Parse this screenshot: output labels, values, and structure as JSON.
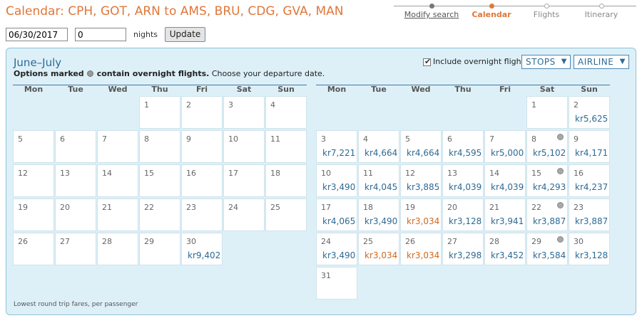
{
  "page": {
    "title": "Calendar: CPH, GOT, ARN to AMS, BRU, CDG, GVA, MAN"
  },
  "steps": [
    {
      "label": "Modify search",
      "state": "link"
    },
    {
      "label": "Calendar",
      "state": "current"
    },
    {
      "label": "Flights",
      "state": "upcoming"
    },
    {
      "label": "Itinerary",
      "state": "upcoming"
    }
  ],
  "search": {
    "date": "06/30/2017",
    "nights": "0",
    "nights_label": "nights",
    "update_label": "Update"
  },
  "panel": {
    "month_title": "June–July",
    "note_bold_1": "Options marked",
    "note_bold_2": "contain overnight flights.",
    "note_rest": "Choose your departure date.",
    "include_overnight_label": "Include overnight flights",
    "include_overnight_checked": true,
    "stops_label": "STOPS",
    "airline_label": "AIRLINE",
    "footer": "Lowest round trip fares, per passenger"
  },
  "weekdays": [
    "Mon",
    "Tue",
    "Wed",
    "Thu",
    "Fri",
    "Sat",
    "Sun"
  ],
  "june": {
    "start_col": 3,
    "days": [
      {
        "d": "1"
      },
      {
        "d": "2"
      },
      {
        "d": "3"
      },
      {
        "d": "4"
      },
      {
        "d": "5"
      },
      {
        "d": "6"
      },
      {
        "d": "7"
      },
      {
        "d": "8"
      },
      {
        "d": "9"
      },
      {
        "d": "10"
      },
      {
        "d": "11"
      },
      {
        "d": "12"
      },
      {
        "d": "13"
      },
      {
        "d": "14"
      },
      {
        "d": "15"
      },
      {
        "d": "16"
      },
      {
        "d": "17"
      },
      {
        "d": "18"
      },
      {
        "d": "19"
      },
      {
        "d": "20"
      },
      {
        "d": "21"
      },
      {
        "d": "22"
      },
      {
        "d": "23"
      },
      {
        "d": "24"
      },
      {
        "d": "25"
      },
      {
        "d": "26"
      },
      {
        "d": "27"
      },
      {
        "d": "28"
      },
      {
        "d": "29"
      },
      {
        "d": "30",
        "p": "kr9,402"
      }
    ]
  },
  "july": {
    "start_col": 5,
    "days": [
      {
        "d": "1"
      },
      {
        "d": "2",
        "p": "kr5,625"
      },
      {
        "d": "3",
        "p": "kr7,221"
      },
      {
        "d": "4",
        "p": "kr4,664"
      },
      {
        "d": "5",
        "p": "kr4,664"
      },
      {
        "d": "6",
        "p": "kr4,595"
      },
      {
        "d": "7",
        "p": "kr5,000"
      },
      {
        "d": "8",
        "p": "kr5,102",
        "o": true
      },
      {
        "d": "9",
        "p": "kr4,171"
      },
      {
        "d": "10",
        "p": "kr3,490"
      },
      {
        "d": "11",
        "p": "kr4,045"
      },
      {
        "d": "12",
        "p": "kr3,885"
      },
      {
        "d": "13",
        "p": "kr4,039"
      },
      {
        "d": "14",
        "p": "kr4,039"
      },
      {
        "d": "15",
        "p": "kr4,293",
        "o": true
      },
      {
        "d": "16",
        "p": "kr4,237"
      },
      {
        "d": "17",
        "p": "kr4,065"
      },
      {
        "d": "18",
        "p": "kr3,490"
      },
      {
        "d": "19",
        "p": "kr3,034",
        "low": true
      },
      {
        "d": "20",
        "p": "kr3,128"
      },
      {
        "d": "21",
        "p": "kr3,941"
      },
      {
        "d": "22",
        "p": "kr3,887",
        "o": true
      },
      {
        "d": "23",
        "p": "kr3,887"
      },
      {
        "d": "24",
        "p": "kr3,490"
      },
      {
        "d": "25",
        "p": "kr3,034",
        "low": true
      },
      {
        "d": "26",
        "p": "kr3,034",
        "low": true
      },
      {
        "d": "27",
        "p": "kr3,298"
      },
      {
        "d": "28",
        "p": "kr3,452"
      },
      {
        "d": "29",
        "p": "kr3,584",
        "o": true
      },
      {
        "d": "30",
        "p": "kr3,128"
      },
      {
        "d": "31"
      }
    ]
  },
  "colors": {
    "accent": "#e0773a",
    "link_blue": "#2d6a94",
    "panel_bg": "#ddf0f8",
    "panel_border": "#8fc3d8",
    "low_price": "#d2691e"
  }
}
